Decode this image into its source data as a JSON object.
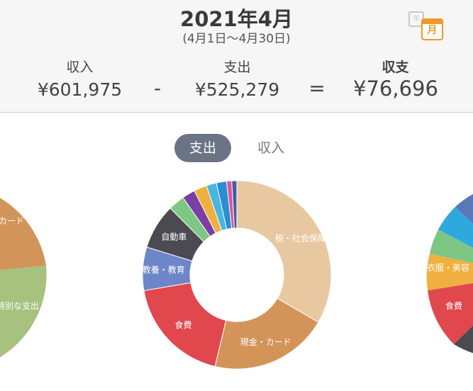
{
  "header": {
    "title": "2021年4月",
    "range": "(4月1日〜4月30日)",
    "year_icon_label": "年",
    "month_icon_label": "月"
  },
  "summary": {
    "income_label": "収入",
    "income_value": "¥601,975",
    "minus": "-",
    "expense_label": "支出",
    "expense_value": "¥525,279",
    "equals": "=",
    "balance_label": "収支",
    "balance_value": "¥76,696"
  },
  "tabs": {
    "expense": "支出",
    "income": "収入"
  },
  "chart_data": {
    "type": "pie",
    "categories": [
      "税・社会保障",
      "現金・カード",
      "食費",
      "教養・教育",
      "自動車",
      "",
      "",
      "",
      "",
      "",
      "",
      ""
    ],
    "values": [
      34.5,
      21.0,
      19.2,
      7.7,
      8.0,
      2.9,
      2.3,
      2.3,
      1.8,
      1.8,
      0.9,
      0.9
    ],
    "colors": [
      "#e8c8a0",
      "#d3945a",
      "#e0484e",
      "#6c86c8",
      "#4a4a50",
      "#7ec683",
      "#7a3fa5",
      "#f0b040",
      "#48b6e2",
      "#2a8fd0",
      "#e0529b",
      "#4060a0"
    ],
    "side_left_labels": [
      "カード",
      "特別な支出"
    ],
    "side_right_labels": [
      "衣服・美容",
      "食費"
    ]
  }
}
